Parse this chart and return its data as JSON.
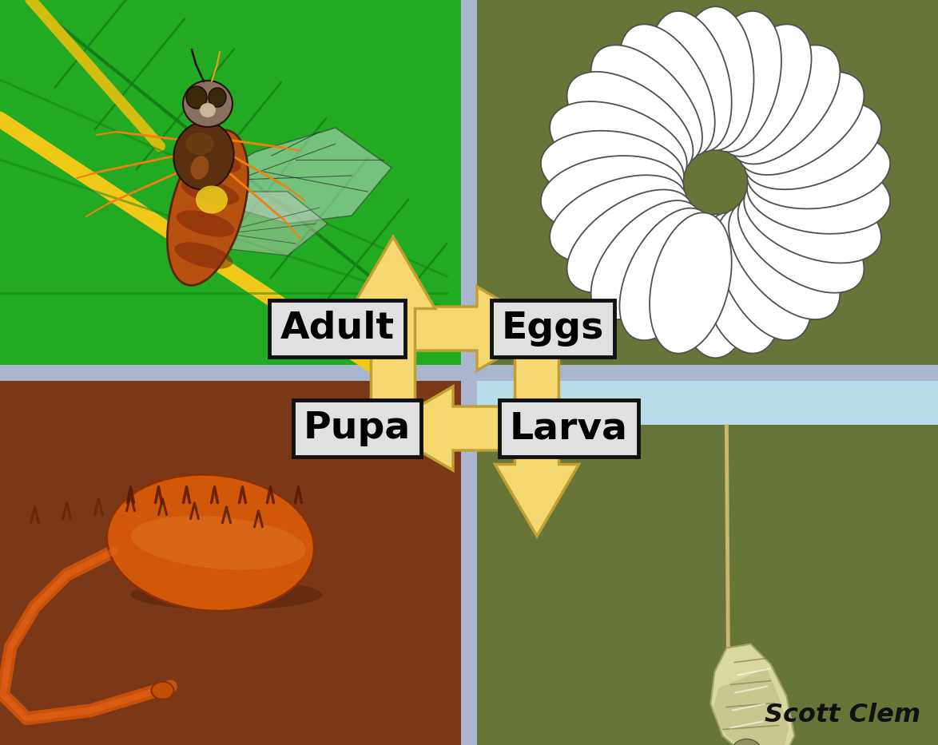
{
  "bg_color": "#aab5d0",
  "quad_top_left": "#22aa22",
  "quad_top_right": "#687538",
  "quad_bottom_left": "#7a3818",
  "quad_bottom_right": "#687538",
  "quad_br_strip": "#b8dde8",
  "arrow_fill": "#f5d870",
  "arrow_edge": "#c0a030",
  "label_fill": "#e0e0e0",
  "label_edge": "#111111",
  "credit": "Scott Clem",
  "label_adult": "Adult",
  "label_eggs": "Eggs",
  "label_larva": "Larva",
  "label_pupa": "Pupa",
  "leaf_green_dark": "#1a9a1a",
  "leaf_green_mid": "#20b020",
  "leaf_vein": "#158015",
  "leaf_stem": "#d8c020"
}
